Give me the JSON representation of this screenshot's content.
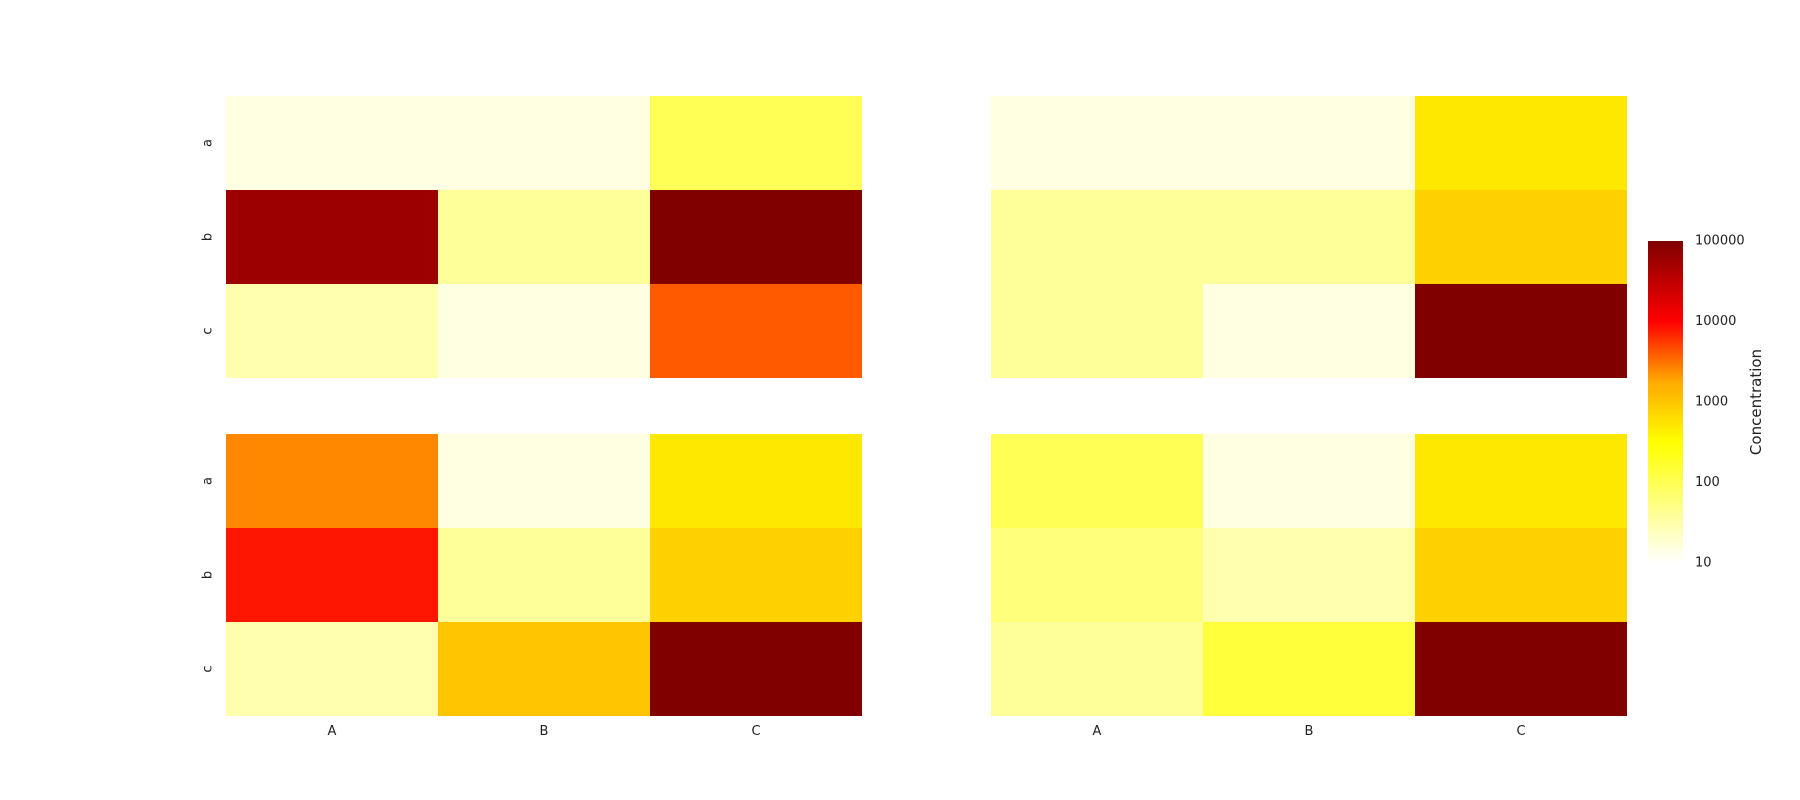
{
  "chart_data": {
    "type": "heatmap",
    "colormap": "hot_r",
    "scale": "log",
    "vmin": 10,
    "vmax": 100000,
    "columns": [
      "A",
      "B",
      "C"
    ],
    "rows": [
      "a",
      "b",
      "c"
    ],
    "panels": [
      {
        "values": [
          [
            15,
            15,
            100
          ],
          [
            60000,
            40,
            150000
          ],
          [
            30,
            15,
            4000
          ]
        ]
      },
      {
        "values": [
          [
            15,
            15,
            500
          ],
          [
            40,
            40,
            800
          ],
          [
            40,
            15,
            120000
          ]
        ]
      },
      {
        "values": [
          [
            2500,
            15,
            500
          ],
          [
            8000,
            40,
            800
          ],
          [
            30,
            1000,
            150000
          ]
        ]
      },
      {
        "values": [
          [
            100,
            15,
            500
          ],
          [
            60,
            30,
            800
          ],
          [
            40,
            140,
            150000
          ]
        ]
      }
    ],
    "colorbar": {
      "label": "Concentration",
      "ticks": [
        "10",
        "100",
        "1000",
        "10000",
        "100000"
      ],
      "tick_values": [
        10,
        100,
        1000,
        10000,
        100000
      ]
    }
  }
}
